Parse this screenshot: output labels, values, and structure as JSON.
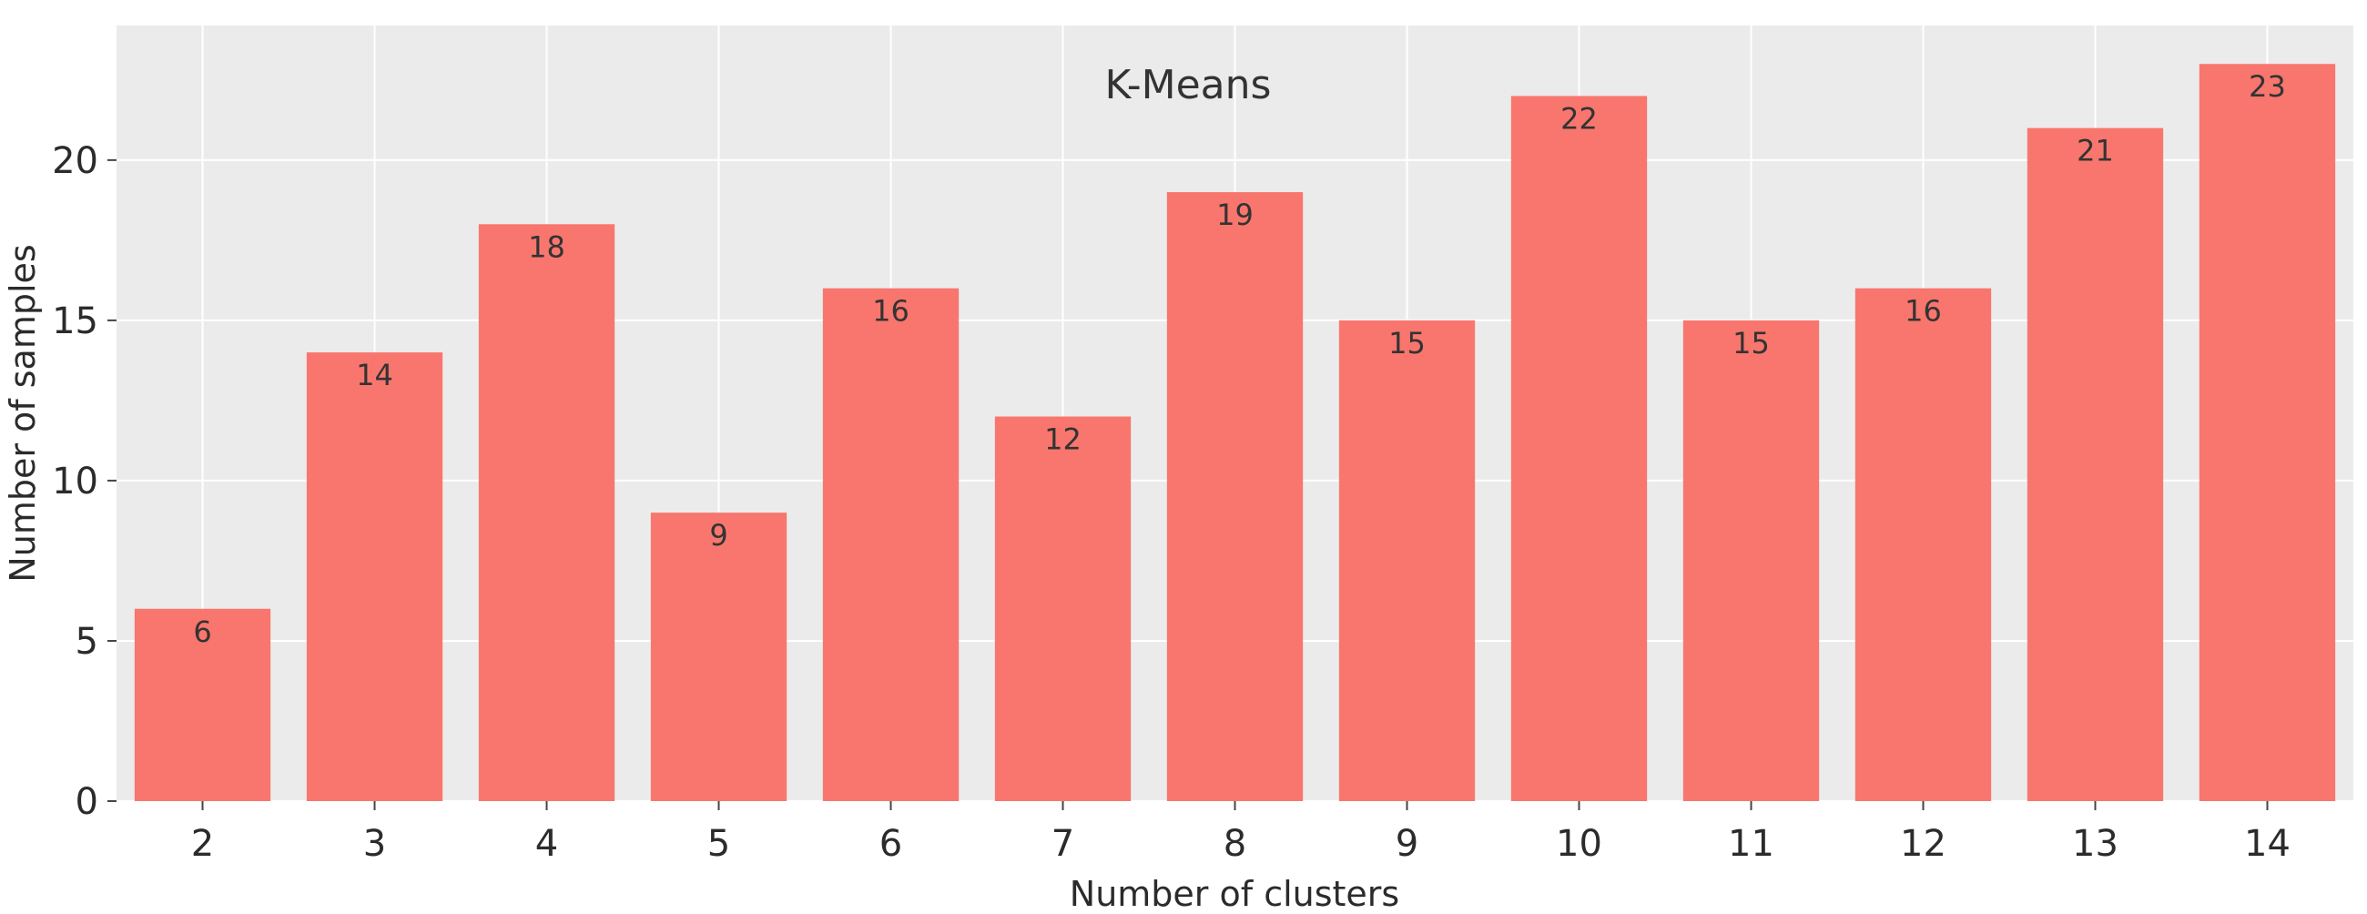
{
  "chart_data": {
    "type": "bar",
    "title": "K-Means",
    "xlabel": "Number of clusters",
    "ylabel": "Number of samples",
    "categories": [
      "2",
      "3",
      "4",
      "5",
      "6",
      "7",
      "8",
      "9",
      "10",
      "11",
      "12",
      "13",
      "14"
    ],
    "values": [
      6,
      14,
      18,
      9,
      16,
      12,
      19,
      15,
      22,
      15,
      16,
      21,
      23
    ],
    "ylim": [
      0,
      24.2
    ],
    "yticks": [
      0,
      5,
      10,
      15,
      20
    ],
    "grid": true,
    "legend": "none",
    "data_labels": "inside-top",
    "colors": {
      "bar": "#F8766D",
      "plot_background": "#EBEBEB",
      "grid": "#FFFFFF",
      "text": "#333333",
      "axis_text": "#2b2b2b"
    }
  }
}
